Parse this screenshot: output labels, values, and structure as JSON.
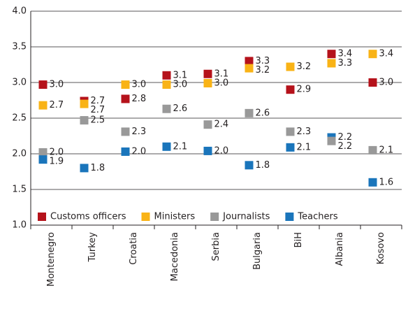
{
  "chart_data": {
    "type": "dot",
    "categories": [
      "Montenegro",
      "Turkey",
      "Croatia",
      "Macedonia",
      "Serbia",
      "Bulgaria",
      "BiH",
      "Albania",
      "Kosovo"
    ],
    "series": [
      {
        "name": "Customs officers",
        "color": "#b5121b",
        "values": [
          2.97,
          2.74,
          2.77,
          3.1,
          3.12,
          3.3,
          2.9,
          3.4,
          3.0
        ],
        "value_labels": [
          "3.0",
          "2.7",
          "2.8",
          "3.1",
          "3.1",
          "3.3",
          "2.9",
          "3.4",
          "3.0"
        ]
      },
      {
        "name": "Ministers",
        "color": "#f9b316",
        "values": [
          2.68,
          2.7,
          2.97,
          2.97,
          2.99,
          3.2,
          3.22,
          3.27,
          3.4
        ],
        "value_labels": [
          "2.7",
          "2.7",
          "3.0",
          "3.0",
          "3.0",
          "3.2",
          "3.2",
          "3.3",
          "3.4"
        ]
      },
      {
        "name": "Journalists",
        "color": "#999999",
        "values": [
          2.02,
          2.47,
          2.31,
          2.63,
          2.41,
          2.57,
          2.31,
          2.18,
          2.05
        ],
        "value_labels": [
          "2.0",
          "2.5",
          "2.3",
          "2.6",
          "2.4",
          "2.6",
          "2.3",
          "2.2",
          "2.1"
        ]
      },
      {
        "name": "Teachers",
        "color": "#1a75bb",
        "values": [
          1.92,
          1.8,
          2.03,
          2.1,
          2.04,
          1.84,
          2.09,
          2.23,
          1.6
        ],
        "value_labels": [
          "1.9",
          "1.8",
          "2.0",
          "2.1",
          "2.0",
          "1.8",
          "2.1",
          "2.2",
          "1.6"
        ]
      }
    ],
    "ylim": [
      1.0,
      4.0
    ],
    "yticks": [
      {
        "value": 1.0,
        "label": "1.0"
      },
      1.5,
      {
        "value": 2.0,
        "label": "2.0"
      },
      2.5,
      {
        "value": 3.0,
        "label": "3.0"
      },
      3.5,
      {
        "value": 4.0,
        "label": "4.0"
      }
    ],
    "grid": true,
    "legend": "bottom"
  }
}
